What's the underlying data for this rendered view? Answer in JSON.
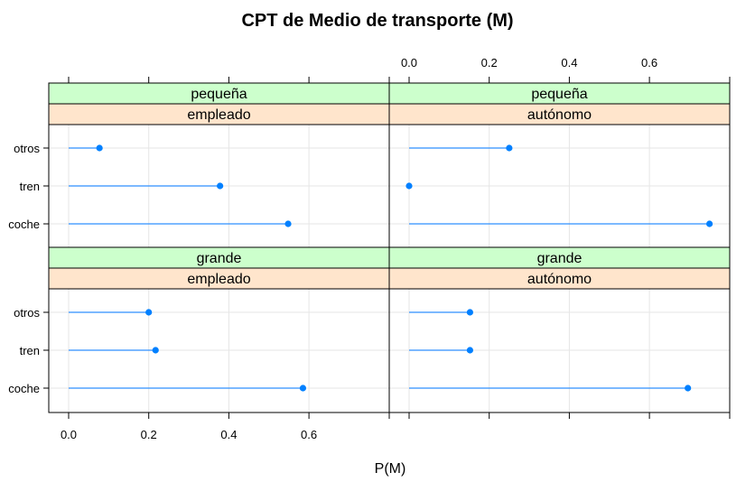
{
  "chart_data": {
    "type": "dotplot",
    "title": "CPT de Medio de transporte (M)",
    "xlabel": "P(M)",
    "xlim": [
      0,
      0.8
    ],
    "x_ticks": [
      "0.0",
      "0.2",
      "0.4",
      "0.6"
    ],
    "categories": [
      "otros",
      "tren",
      "coche"
    ],
    "grid": true,
    "colors": {
      "line": "#2e8fff",
      "point": "#0080ff",
      "strip_top": "#ccffcc",
      "strip_bottom": "#ffe5cc",
      "grid": "#e6e6e6"
    },
    "panels": [
      {
        "strips": [
          "pequeña",
          "empleado"
        ],
        "values": {
          "otros": 0.077,
          "tren": 0.378,
          "coche": 0.548
        }
      },
      {
        "strips": [
          "pequeña",
          "autónomo"
        ],
        "values": {
          "otros": 0.25,
          "tren": 0.0,
          "coche": 0.75
        }
      },
      {
        "strips": [
          "grande",
          "empleado"
        ],
        "values": {
          "otros": 0.2,
          "tren": 0.217,
          "coche": 0.585
        }
      },
      {
        "strips": [
          "grande",
          "autónomo"
        ],
        "values": {
          "otros": 0.152,
          "tren": 0.152,
          "coche": 0.696
        }
      }
    ]
  }
}
